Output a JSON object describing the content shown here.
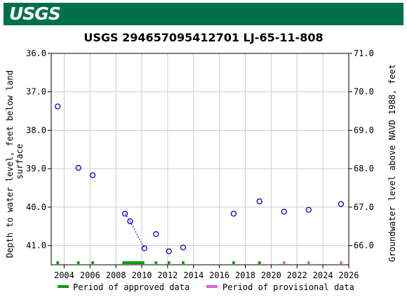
{
  "header": {
    "logo_text": "USGS",
    "brand_color": "#00704a"
  },
  "chart_data": {
    "type": "scatter",
    "title": "USGS 294657095412701 LJ-65-11-808",
    "ylabel_left": [
      "Depth to water level, feet below land",
      "surface"
    ],
    "ylabel_right": "Groundwater level above NAVD 1988, feet",
    "x_range": [
      2003.0,
      2026.0
    ],
    "x_ticks": [
      2004,
      2006,
      2008,
      2010,
      2012,
      2014,
      2016,
      2018,
      2020,
      2022,
      2024,
      2026
    ],
    "y_left_range": [
      36.0,
      41.5
    ],
    "y_left_ticks": [
      "36.0",
      "37.0",
      "38.0",
      "39.0",
      "40.0",
      "41.0"
    ],
    "y_right_ticks": [
      "71.0",
      "70.0",
      "69.0",
      "68.0",
      "67.0",
      "66.0"
    ],
    "grid": true,
    "points": [
      {
        "x": 2003.5,
        "y": 37.38
      },
      {
        "x": 2005.1,
        "y": 38.98
      },
      {
        "x": 2006.2,
        "y": 39.17
      },
      {
        "x": 2008.7,
        "y": 40.17
      },
      {
        "x": 2009.1,
        "y": 40.37
      },
      {
        "x": 2010.2,
        "y": 41.07
      },
      {
        "x": 2011.1,
        "y": 40.7
      },
      {
        "x": 2012.1,
        "y": 41.15
      },
      {
        "x": 2013.2,
        "y": 41.05
      },
      {
        "x": 2017.1,
        "y": 40.17
      },
      {
        "x": 2019.1,
        "y": 39.85
      },
      {
        "x": 2021.0,
        "y": 40.12
      },
      {
        "x": 2022.9,
        "y": 40.07
      },
      {
        "x": 2025.4,
        "y": 39.92
      }
    ],
    "connected_segments": [
      [
        3,
        4
      ],
      [
        4,
        5
      ]
    ],
    "approved_periods": [
      [
        2003.4,
        2003.6
      ],
      [
        2005.0,
        2005.2
      ],
      [
        2006.1,
        2006.3
      ],
      [
        2008.5,
        2010.2
      ],
      [
        2011.0,
        2011.2
      ],
      [
        2012.0,
        2012.2
      ],
      [
        2013.1,
        2013.3
      ],
      [
        2017.0,
        2017.2
      ],
      [
        2019.0,
        2019.2
      ]
    ],
    "provisional_periods": [
      [
        2020.9,
        2021.1
      ],
      [
        2022.8,
        2023.0
      ],
      [
        2025.3,
        2025.5
      ]
    ],
    "colors": {
      "point": "#0000cc",
      "approved": "#00a000",
      "provisional": "#e060e0",
      "grid": "#cccccc"
    },
    "legend": {
      "approved_label": "Period of approved data",
      "provisional_label": "Period of provisional data"
    }
  }
}
